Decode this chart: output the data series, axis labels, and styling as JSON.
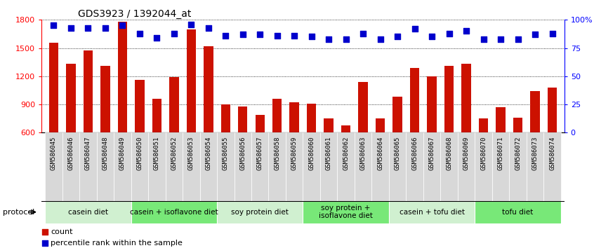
{
  "title": "GDS3923 / 1392044_at",
  "samples": [
    "GSM586045",
    "GSM586046",
    "GSM586047",
    "GSM586048",
    "GSM586049",
    "GSM586050",
    "GSM586051",
    "GSM586052",
    "GSM586053",
    "GSM586054",
    "GSM586055",
    "GSM586056",
    "GSM586057",
    "GSM586058",
    "GSM586059",
    "GSM586060",
    "GSM586061",
    "GSM586062",
    "GSM586063",
    "GSM586064",
    "GSM586065",
    "GSM586066",
    "GSM586067",
    "GSM586068",
    "GSM586069",
    "GSM586070",
    "GSM586071",
    "GSM586072",
    "GSM586073",
    "GSM586074"
  ],
  "counts": [
    1555,
    1330,
    1475,
    1310,
    1780,
    1160,
    960,
    1190,
    1700,
    1520,
    900,
    880,
    790,
    960,
    920,
    910,
    750,
    680,
    1140,
    750,
    980,
    1290,
    1200,
    1310,
    1330,
    750,
    870,
    760,
    1040,
    1080
  ],
  "percentile_ranks": [
    95,
    93,
    93,
    93,
    95,
    88,
    84,
    88,
    96,
    93,
    86,
    87,
    87,
    86,
    86,
    85,
    83,
    83,
    88,
    83,
    85,
    92,
    85,
    88,
    90,
    83,
    83,
    83,
    87,
    88
  ],
  "ylim_left": [
    600,
    1800
  ],
  "ylim_right": [
    0,
    100
  ],
  "yticks_left": [
    600,
    900,
    1200,
    1500,
    1800
  ],
  "yticks_right": [
    0,
    25,
    50,
    75,
    100
  ],
  "ytick_labels_right": [
    "0",
    "25",
    "50",
    "75",
    "100%"
  ],
  "groups": [
    {
      "label": "casein diet",
      "start": 0,
      "end": 4,
      "color": "#d0f0d0"
    },
    {
      "label": "casein + isoflavone diet",
      "start": 5,
      "end": 9,
      "color": "#78e878"
    },
    {
      "label": "soy protein diet",
      "start": 10,
      "end": 14,
      "color": "#d0f0d0"
    },
    {
      "label": "soy protein +\nisoflavone diet",
      "start": 15,
      "end": 19,
      "color": "#78e878"
    },
    {
      "label": "casein + tofu diet",
      "start": 20,
      "end": 24,
      "color": "#d0f0d0"
    },
    {
      "label": "tofu diet",
      "start": 25,
      "end": 29,
      "color": "#78e878"
    }
  ],
  "bar_color": "#cc1100",
  "dot_color": "#0000cc",
  "bg_color": "#ffffff",
  "tick_bg_color": "#d8d8d8",
  "protocol_label": "protocol",
  "legend_count_label": "count",
  "legend_percentile_label": "percentile rank within the sample",
  "title_fontsize": 10,
  "tick_fontsize": 6.5,
  "group_fontsize": 7.5,
  "legend_fontsize": 8
}
